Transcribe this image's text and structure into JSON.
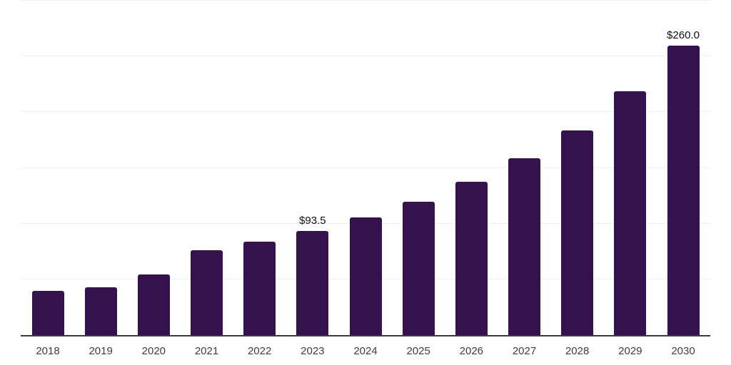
{
  "chart_data": {
    "type": "bar",
    "categories": [
      "2018",
      "2019",
      "2020",
      "2021",
      "2022",
      "2023",
      "2024",
      "2025",
      "2026",
      "2027",
      "2028",
      "2029",
      "2030"
    ],
    "values": [
      39.4,
      42.7,
      54.4,
      76.1,
      83.9,
      93.5,
      105.6,
      119.9,
      137.5,
      158.8,
      183.9,
      218.6,
      260.0
    ],
    "data_labels": [
      {
        "category": "2023",
        "text": "$93.5"
      },
      {
        "category": "2030",
        "text": "$260.0"
      }
    ],
    "ylim": [
      0,
      300
    ],
    "gridline_step": 50,
    "grid": true,
    "legend": "none",
    "bar_color": "#35124e",
    "gridline_color": "#f0f0f0",
    "axis_color": "#3a3a40",
    "tick_label_color": "#3d3d3d",
    "value_label_color": "#111111"
  }
}
